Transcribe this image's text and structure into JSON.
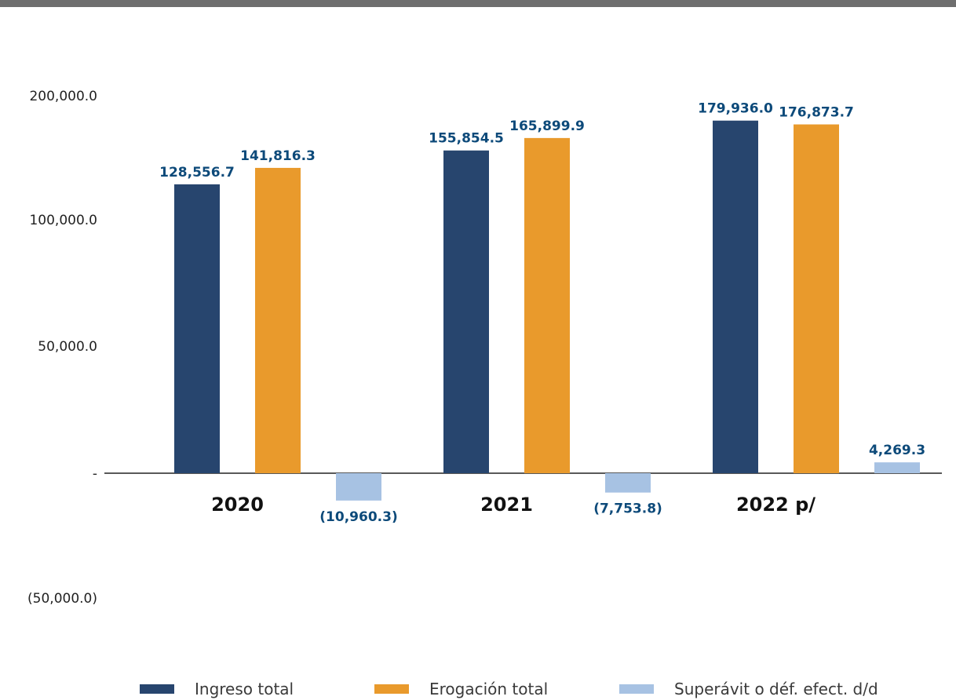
{
  "chart_data": {
    "type": "bar",
    "categories": [
      "2020",
      "2021",
      "2022 p/"
    ],
    "series": [
      {
        "name": "Ingreso total",
        "color": "#27456e",
        "values": [
          128556.7,
          155854.5,
          179936.0
        ],
        "labels": [
          "128,556.7",
          "155,854.5",
          "179,936.0"
        ]
      },
      {
        "name": "Erogación total",
        "color": "#e99a2c",
        "values": [
          141816.3,
          165899.9,
          176873.7
        ],
        "labels": [
          "141,816.3",
          "165,899.9",
          "176,873.7"
        ]
      },
      {
        "name": "Superávit o déf. efect. d/d",
        "color": "#a7c2e3",
        "values": [
          -10960.3,
          -7753.8,
          4269.3
        ],
        "labels": [
          "(10,960.3)",
          "(7,753.8)",
          "4,269.3"
        ]
      }
    ],
    "y_ticks": [
      {
        "value": 200000,
        "label": "200,000.0"
      },
      {
        "value": 100000,
        "label": "100,000.0"
      },
      {
        "value": 50000,
        "label": "50,000.0"
      },
      {
        "value": 0,
        "label": "-"
      },
      {
        "value": -50000,
        "label": "(50,000.0)"
      }
    ],
    "ylim": [
      -50000,
      200000
    ],
    "title": "",
    "xlabel": "",
    "ylabel": "",
    "legend_position": "bottom",
    "grid": false
  }
}
